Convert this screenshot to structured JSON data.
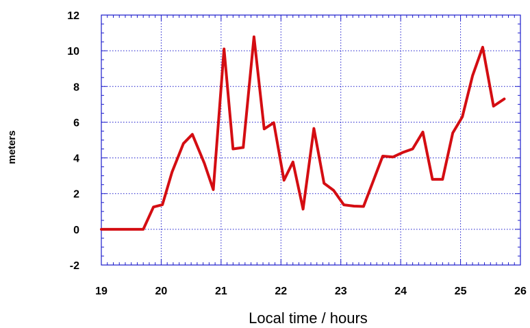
{
  "chart_data": {
    "type": "line",
    "title": "",
    "xlabel": "Local time / hours",
    "ylabel": "meters",
    "xlim": [
      19,
      26
    ],
    "ylim": [
      -2,
      12
    ],
    "x_ticks": [
      19,
      20,
      21,
      22,
      23,
      24,
      25,
      26
    ],
    "y_ticks": [
      -2,
      0,
      2,
      4,
      6,
      8,
      10,
      12
    ],
    "grid": true,
    "colors": {
      "line": "#d40d12",
      "grid": "#1a1acc",
      "axis": "#1a1acc"
    },
    "series": [
      {
        "x": [
          19.0,
          19.35,
          19.55,
          19.7,
          19.87,
          20.02,
          20.18,
          20.37,
          20.52,
          20.72,
          20.87,
          21.05,
          21.2,
          21.37,
          21.55,
          21.72,
          21.88,
          22.05,
          22.2,
          22.37,
          22.55,
          22.72,
          22.88,
          23.05,
          23.22,
          23.38,
          23.55,
          23.7,
          23.87,
          24.03,
          24.2,
          24.37,
          24.53,
          24.7,
          24.87,
          25.03,
          25.2,
          25.37,
          25.55,
          25.73
        ],
        "y": [
          0.0,
          0.0,
          0.0,
          0.0,
          1.25,
          1.38,
          3.2,
          4.8,
          5.32,
          3.7,
          2.22,
          10.1,
          4.5,
          4.58,
          10.78,
          5.62,
          5.97,
          2.75,
          3.77,
          1.13,
          5.65,
          2.58,
          2.18,
          1.37,
          1.3,
          1.28,
          2.78,
          4.1,
          4.05,
          4.3,
          4.5,
          5.45,
          2.8,
          2.8,
          5.4,
          6.3,
          8.6,
          10.2,
          6.9,
          7.3
        ]
      }
    ]
  }
}
